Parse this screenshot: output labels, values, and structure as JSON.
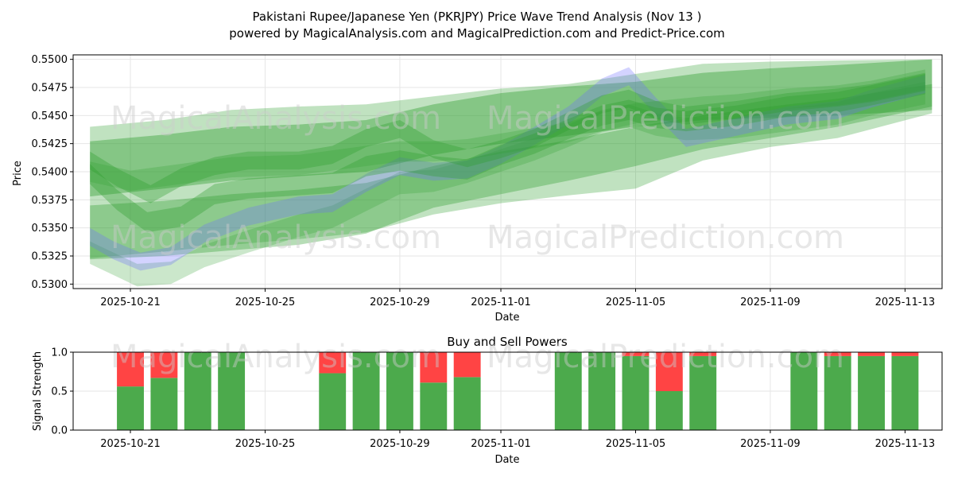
{
  "title_line1": "Pakistani Rupee/Japanese Yen (PKRJPY) Price Wave Trend Analysis (Nov 13 )",
  "title_line2": "powered by MagicalAnalysis.com and MagicalPrediction.com and Predict-Price.com",
  "watermark_left": "MagicalAnalysis.com",
  "watermark_right": "MagicalPrediction.com",
  "colors": {
    "green": "#2e9e2e",
    "blue": "#6c6cff",
    "red": "#ff4444",
    "bar_green": "#4caa4c",
    "grid": "#e6e6e6"
  },
  "chart_data": [
    {
      "type": "area",
      "title": "",
      "xlabel": "Date",
      "ylabel": "Price",
      "x_start": "2025-10-19",
      "xlim_days": [
        0.3,
        26.1
      ],
      "ylim": [
        0.5296,
        0.5504
      ],
      "x_ticks": [
        {
          "day": 2,
          "label": "2025-10-21"
        },
        {
          "day": 6,
          "label": "2025-10-25"
        },
        {
          "day": 10,
          "label": "2025-10-29"
        },
        {
          "day": 13,
          "label": "2025-11-01"
        },
        {
          "day": 17,
          "label": "2025-11-05"
        },
        {
          "day": 21,
          "label": "2025-11-09"
        },
        {
          "day": 25,
          "label": "2025-11-13"
        }
      ],
      "y_ticks": [
        0.53,
        0.5325,
        0.535,
        0.5375,
        0.54,
        0.5425,
        0.545,
        0.5475,
        0.55
      ],
      "y_tick_labels": [
        "0.5300",
        "0.5325",
        "0.5350",
        "0.5375",
        "0.5400",
        "0.5425",
        "0.5450",
        "0.5475",
        "0.5500"
      ],
      "series": [
        {
          "name": "envelope-outer",
          "color": "green",
          "opacity": 0.3,
          "x": [
            0.8,
            3,
            5,
            7,
            9,
            11,
            13,
            15,
            17,
            19,
            21,
            23,
            25.8
          ],
          "upper": [
            0.544,
            0.5446,
            0.5455,
            0.5458,
            0.546,
            0.5467,
            0.5474,
            0.5478,
            0.5487,
            0.5496,
            0.5498,
            0.5499,
            0.55
          ],
          "lower": [
            0.5323,
            0.5329,
            0.5335,
            0.534,
            0.5346,
            0.5362,
            0.5372,
            0.5379,
            0.5385,
            0.541,
            0.5422,
            0.543,
            0.5452
          ]
        },
        {
          "name": "envelope-mid",
          "color": "green",
          "opacity": 0.4,
          "x": [
            0.8,
            3,
            5,
            7,
            9,
            11,
            13,
            15,
            17,
            19,
            21,
            23,
            25.8
          ],
          "upper": [
            0.5427,
            0.5433,
            0.544,
            0.5442,
            0.5446,
            0.546,
            0.547,
            0.5476,
            0.548,
            0.5488,
            0.5492,
            0.5495,
            0.55
          ],
          "lower": [
            0.5378,
            0.5385,
            0.5392,
            0.5396,
            0.54,
            0.5415,
            0.5425,
            0.5432,
            0.544,
            0.5446,
            0.5448,
            0.545,
            0.5455
          ]
        },
        {
          "name": "envelope-low",
          "color": "green",
          "opacity": 0.35,
          "x": [
            0.8,
            3,
            5,
            7,
            9,
            11,
            13,
            15,
            17,
            19,
            21,
            23,
            25.8
          ],
          "upper": [
            0.537,
            0.5374,
            0.538,
            0.5384,
            0.539,
            0.5405,
            0.5418,
            0.5428,
            0.544,
            0.545,
            0.5458,
            0.5465,
            0.5478
          ],
          "lower": [
            0.5322,
            0.5325,
            0.533,
            0.5335,
            0.5345,
            0.5368,
            0.538,
            0.5392,
            0.5405,
            0.542,
            0.543,
            0.544,
            0.5458
          ]
        },
        {
          "name": "wave-low",
          "color": "green",
          "opacity": 0.25,
          "width": 0.002,
          "x": [
            0.8,
            1.5,
            2.2,
            3.2,
            4.2,
            5.5,
            7,
            8,
            9,
            10,
            11,
            12,
            13,
            14,
            15,
            16,
            16.8,
            17.6,
            18.5,
            20,
            21.5,
            23,
            24,
            25.6
          ],
          "y": [
            0.5328,
            0.5318,
            0.5308,
            0.531,
            0.5325,
            0.5338,
            0.5352,
            0.536,
            0.5375,
            0.539,
            0.5392,
            0.54,
            0.541,
            0.542,
            0.5432,
            0.5445,
            0.545,
            0.5442,
            0.5438,
            0.544,
            0.5446,
            0.5452,
            0.546,
            0.547
          ]
        },
        {
          "name": "wave-blue",
          "color": "blue",
          "opacity": 0.3,
          "width": 0.0016,
          "x": [
            0.8,
            1.5,
            2.3,
            3.2,
            4.2,
            5.5,
            7,
            8,
            9,
            10,
            11,
            12,
            13,
            14,
            15,
            16,
            16.8,
            17.6,
            18.5,
            20,
            21.5,
            23,
            24,
            25.6
          ],
          "y": [
            0.5342,
            0.533,
            0.532,
            0.5325,
            0.5345,
            0.536,
            0.537,
            0.5372,
            0.539,
            0.5405,
            0.54,
            0.5402,
            0.5415,
            0.5432,
            0.545,
            0.5475,
            0.5485,
            0.5458,
            0.543,
            0.544,
            0.545,
            0.5455,
            0.5465,
            0.5478
          ]
        },
        {
          "name": "wave-mid",
          "color": "green",
          "opacity": 0.35,
          "width": 0.0018,
          "x": [
            0.8,
            1.6,
            2.5,
            3.5,
            4.5,
            5.5,
            7,
            8,
            9,
            10,
            11,
            12,
            13,
            14,
            15,
            16,
            16.8,
            17.6,
            18.5,
            20,
            21.5,
            23,
            24,
            25.6
          ],
          "y": [
            0.5398,
            0.5375,
            0.5355,
            0.536,
            0.538,
            0.5385,
            0.5388,
            0.539,
            0.5405,
            0.541,
            0.5405,
            0.5402,
            0.5415,
            0.5425,
            0.5438,
            0.545,
            0.5455,
            0.5448,
            0.5445,
            0.545,
            0.5458,
            0.5462,
            0.5468,
            0.5478
          ]
        },
        {
          "name": "wave-high",
          "color": "green",
          "opacity": 0.35,
          "width": 0.0016,
          "x": [
            0.8,
            1.6,
            2.6,
            3.5,
            4.5,
            5.5,
            7,
            8,
            9,
            10,
            11,
            12,
            13,
            14,
            15,
            16,
            16.8,
            17.6,
            18.5,
            20,
            21.5,
            23,
            24,
            25.6
          ],
          "y": [
            0.541,
            0.5395,
            0.538,
            0.5395,
            0.5405,
            0.541,
            0.541,
            0.5415,
            0.543,
            0.5438,
            0.542,
            0.5412,
            0.542,
            0.543,
            0.5445,
            0.546,
            0.5465,
            0.5455,
            0.545,
            0.5455,
            0.5462,
            0.5466,
            0.547,
            0.548
          ]
        },
        {
          "name": "wave-top",
          "color": "green",
          "opacity": 0.25,
          "width": 0.0018,
          "x": [
            0.8,
            2,
            3.5,
            5,
            7,
            8.5,
            10,
            11,
            12,
            13,
            14,
            15,
            16,
            17,
            18,
            19,
            20,
            21.5,
            23,
            24,
            25.6
          ],
          "y": [
            0.54,
            0.5392,
            0.5398,
            0.5404,
            0.5406,
            0.5412,
            0.5418,
            0.5418,
            0.542,
            0.5425,
            0.543,
            0.5435,
            0.5445,
            0.5452,
            0.5455,
            0.5458,
            0.546,
            0.5465,
            0.5468,
            0.5472,
            0.5482
          ]
        }
      ]
    },
    {
      "type": "bar",
      "title": "Buy and Sell Powers",
      "xlabel": "Date",
      "ylabel": "Signal Strength",
      "x_start": "2025-10-19",
      "xlim_days": [
        0.3,
        26.1
      ],
      "ylim": [
        0,
        1.0
      ],
      "x_ticks": [
        {
          "day": 2,
          "label": "2025-10-21"
        },
        {
          "day": 6,
          "label": "2025-10-25"
        },
        {
          "day": 10,
          "label": "2025-10-29"
        },
        {
          "day": 13,
          "label": "2025-11-01"
        },
        {
          "day": 17,
          "label": "2025-11-05"
        },
        {
          "day": 21,
          "label": "2025-11-09"
        },
        {
          "day": 25,
          "label": "2025-11-13"
        }
      ],
      "y_ticks": [
        0.0,
        0.5,
        1.0
      ],
      "y_tick_labels": [
        "0.0",
        "0.5",
        "1.0"
      ],
      "bar_width_days": 0.8,
      "bars": [
        {
          "day": 2,
          "buy": 0.56
        },
        {
          "day": 3,
          "buy": 0.67
        },
        {
          "day": 4,
          "buy": 1.0
        },
        {
          "day": 5,
          "buy": 1.0
        },
        {
          "day": 8,
          "buy": 0.73
        },
        {
          "day": 9,
          "buy": 1.0
        },
        {
          "day": 10,
          "buy": 1.0
        },
        {
          "day": 11,
          "buy": 0.61
        },
        {
          "day": 12,
          "buy": 0.68
        },
        {
          "day": 15,
          "buy": 1.0
        },
        {
          "day": 16,
          "buy": 1.0
        },
        {
          "day": 17,
          "buy": 0.95
        },
        {
          "day": 18,
          "buy": 0.5
        },
        {
          "day": 19,
          "buy": 0.95
        },
        {
          "day": 22,
          "buy": 1.0
        },
        {
          "day": 23,
          "buy": 0.95
        },
        {
          "day": 24,
          "buy": 0.95
        },
        {
          "day": 25,
          "buy": 0.95
        }
      ]
    }
  ]
}
